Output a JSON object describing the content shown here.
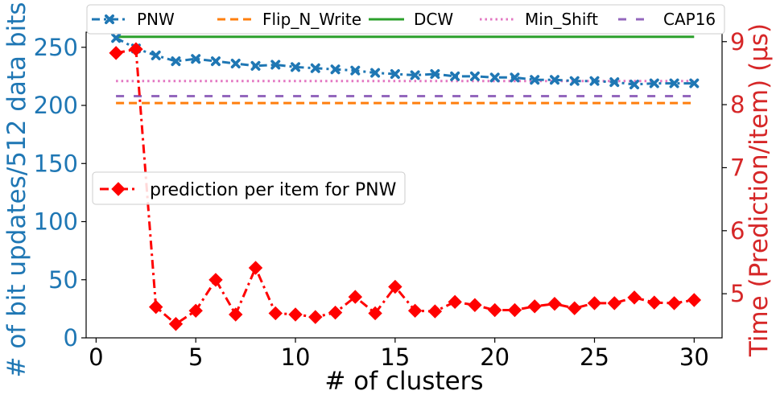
{
  "chart_data": {
    "type": "line",
    "xlabel": "# of clusters",
    "ylabel_left": "# of bit updates/512 data bits",
    "ylabel_right": "Time (Prediction/item) (μs)",
    "x_ticks": [
      0,
      5,
      10,
      15,
      20,
      25,
      30
    ],
    "y_left_ticks": [
      0,
      50,
      100,
      150,
      200,
      250
    ],
    "y_right_ticks": [
      5,
      6,
      7,
      8,
      9
    ],
    "xlim": [
      -0.5,
      31.4
    ],
    "ylim_left": [
      0,
      263
    ],
    "ylim_right": [
      4.3,
      9.15
    ],
    "legend_top": {
      "placement": "top",
      "entries": [
        "PNW",
        "Flip_N_Write",
        "DCW",
        "Min_Shift",
        "CAP16"
      ]
    },
    "legend_mid": {
      "placement": "center-left",
      "entries": [
        "prediction per item for PNW"
      ]
    },
    "colors": {
      "PNW": "#1f77b4",
      "Flip_N_Write": "#ff7f0e",
      "DCW": "#2ca02c",
      "Min_Shift": "#e377c2",
      "CAP16": "#9467bd",
      "prediction": "#ff0000",
      "left_axis_text": "#1f77b4",
      "right_axis_text": "#d62728"
    },
    "x": [
      1,
      2,
      3,
      4,
      5,
      6,
      7,
      8,
      9,
      10,
      11,
      12,
      13,
      14,
      15,
      16,
      17,
      18,
      19,
      20,
      21,
      22,
      23,
      24,
      25,
      26,
      27,
      28,
      29,
      30
    ],
    "series": [
      {
        "name": "PNW",
        "axis": "left",
        "style": "dashdot-x",
        "values": [
          258,
          249,
          243,
          238,
          240,
          238,
          236,
          234,
          235,
          233,
          232,
          231,
          230,
          228,
          227,
          226,
          227,
          225,
          225,
          224,
          224,
          222,
          222,
          221,
          221,
          220,
          218,
          219,
          219,
          219
        ]
      },
      {
        "name": "Flip_N_Write",
        "axis": "left",
        "style": "dashed",
        "values": [
          202,
          202,
          202,
          202,
          202,
          202,
          202,
          202,
          202,
          202,
          202,
          202,
          202,
          202,
          202,
          202,
          202,
          202,
          202,
          202,
          202,
          202,
          202,
          202,
          202,
          202,
          202,
          202,
          202,
          202
        ]
      },
      {
        "name": "DCW",
        "axis": "left",
        "style": "solid",
        "values": [
          259,
          259,
          259,
          259,
          259,
          259,
          259,
          259,
          259,
          259,
          259,
          259,
          259,
          259,
          259,
          259,
          259,
          259,
          259,
          259,
          259,
          259,
          259,
          259,
          259,
          259,
          259,
          259,
          259,
          259
        ]
      },
      {
        "name": "Min_Shift",
        "axis": "left",
        "style": "dotted",
        "values": [
          221,
          221,
          221,
          221,
          221,
          221,
          221,
          221,
          221,
          221,
          221,
          221,
          221,
          221,
          221,
          221,
          221,
          221,
          221,
          221,
          221,
          221,
          221,
          221,
          221,
          221,
          221,
          221,
          221,
          221
        ]
      },
      {
        "name": "CAP16",
        "axis": "left",
        "style": "loosedash",
        "values": [
          208,
          208,
          208,
          208,
          208,
          208,
          208,
          208,
          208,
          208,
          208,
          208,
          208,
          208,
          208,
          208,
          208,
          208,
          208,
          208,
          208,
          208,
          208,
          208,
          208,
          208,
          208,
          208,
          208,
          208
        ]
      },
      {
        "name": "prediction per item for PNW",
        "axis": "right",
        "style": "dashdot-diamond",
        "values": [
          8.82,
          8.88,
          4.79,
          4.52,
          4.73,
          5.22,
          4.67,
          5.41,
          4.69,
          4.67,
          4.63,
          4.7,
          4.95,
          4.69,
          5.11,
          4.73,
          4.72,
          4.87,
          4.82,
          4.74,
          4.74,
          4.8,
          4.84,
          4.77,
          4.85,
          4.85,
          4.94,
          4.86,
          4.85,
          4.9
        ]
      }
    ]
  }
}
